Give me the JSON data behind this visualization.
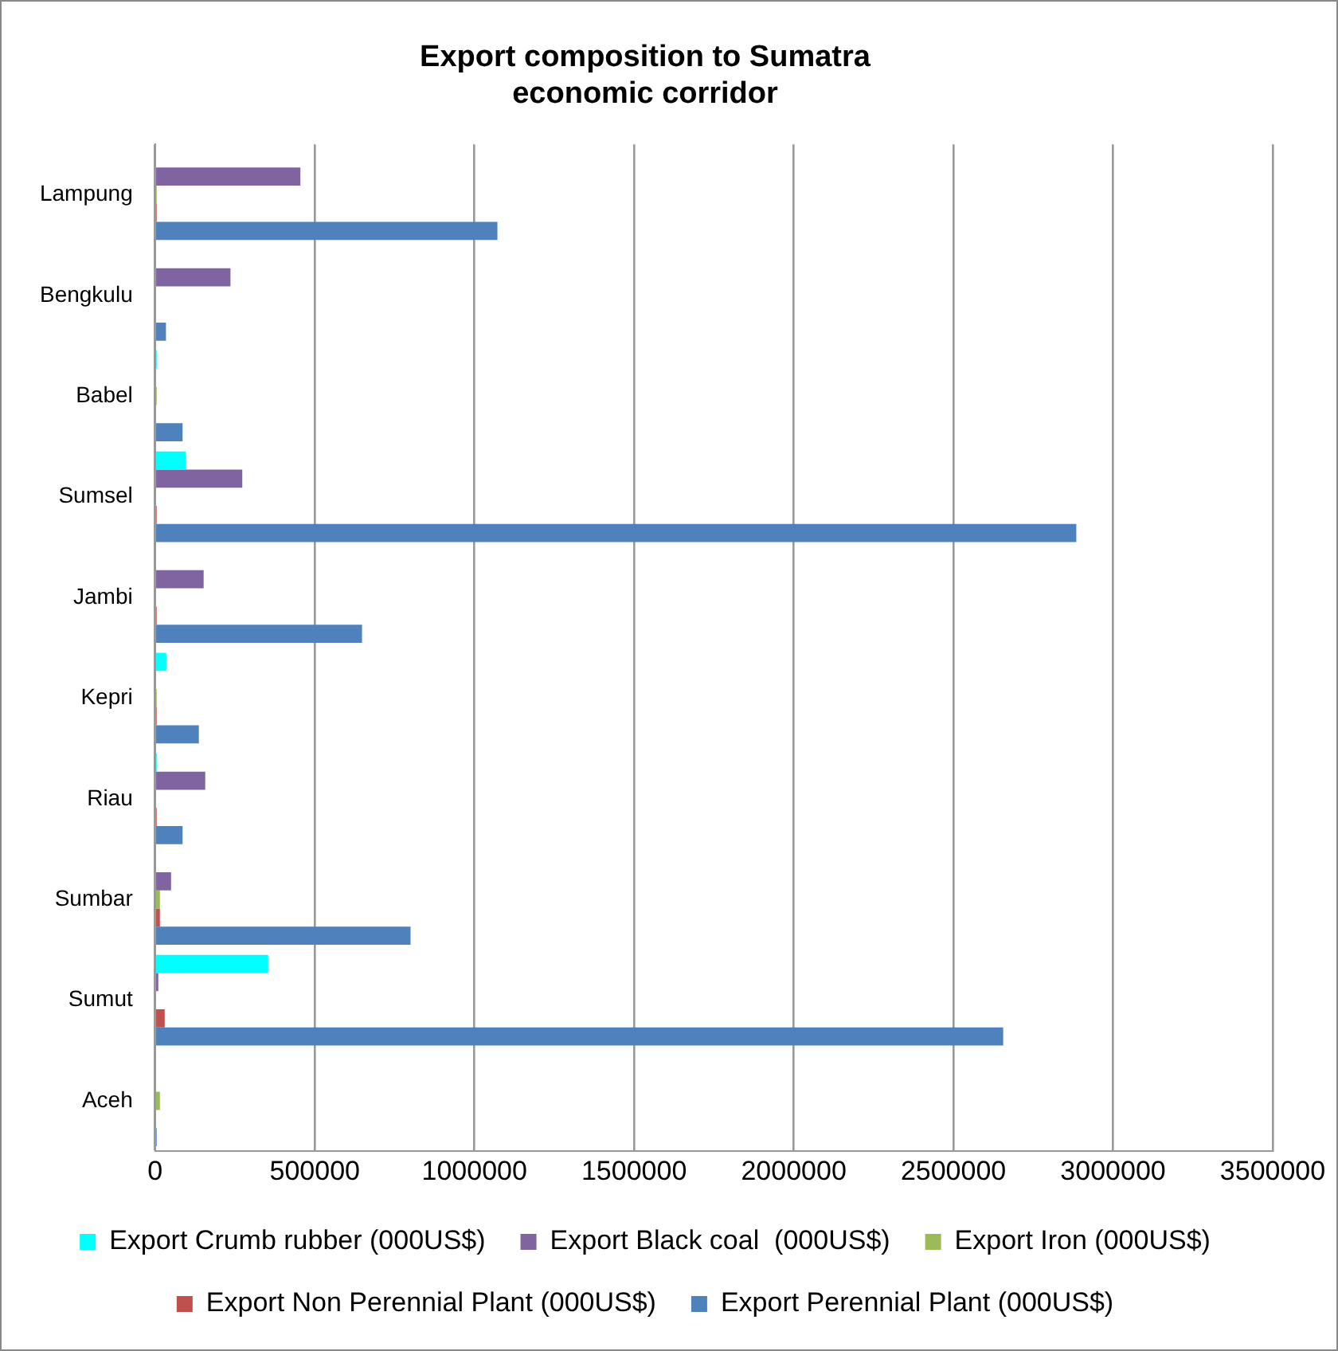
{
  "chart_data": {
    "type": "bar",
    "orientation": "horizontal",
    "title": "Export composition to Sumatra\neconomic corridor",
    "categories": [
      "Lampung",
      "Bengkulu",
      "Babel",
      "Sumsel",
      "Jambi",
      "Kepri",
      "Riau",
      "Sumbar",
      "Sumut",
      "Aceh"
    ],
    "series": [
      {
        "name": "Export Crumb rubber (000US$)",
        "color": "#00ffff",
        "values": [
          0,
          0,
          5000,
          96000,
          0,
          35000,
          5000,
          0,
          354000,
          0
        ]
      },
      {
        "name": "Export Black coal  (000US$)",
        "color": "#8064a2",
        "values": [
          455000,
          236000,
          0,
          273000,
          152000,
          0,
          157000,
          50000,
          10000,
          0
        ]
      },
      {
        "name": "Export Iron (000US$)",
        "color": "#9bbb59",
        "values": [
          5000,
          0,
          5000,
          0,
          0,
          5000,
          0,
          15000,
          0,
          15000
        ]
      },
      {
        "name": "Export Non Perennial Plant (000US$)",
        "color": "#c0504d",
        "values": [
          5000,
          0,
          0,
          5000,
          5000,
          5000,
          5000,
          15000,
          30000,
          0
        ]
      },
      {
        "name": "Export Perennial Plant (000US$)",
        "color": "#4f81bd",
        "values": [
          1072000,
          34000,
          86000,
          2885000,
          648000,
          137000,
          86000,
          800000,
          2656000,
          5000
        ]
      }
    ],
    "xlim": [
      0,
      3500000
    ],
    "xticks": [
      0,
      500000,
      1000000,
      1500000,
      2000000,
      2500000,
      3000000,
      3500000
    ],
    "grid": "x",
    "legend": "bottom"
  }
}
